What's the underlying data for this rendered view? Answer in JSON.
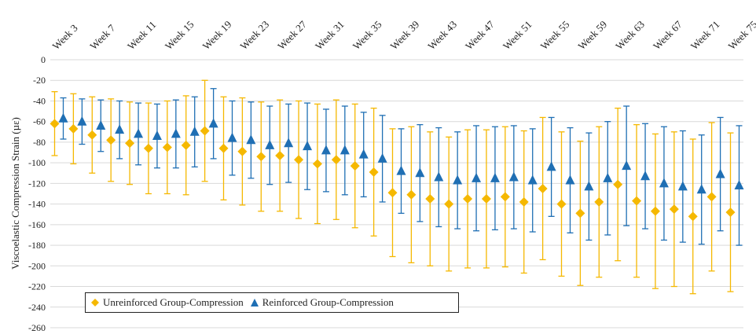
{
  "chart_data": {
    "type": "scatter",
    "title": "",
    "xlabel": "",
    "ylabel": "Viscoelastic Compression Strain (µε)",
    "ylim": [
      -260,
      0
    ],
    "ytick_step": 20,
    "grid": "horizontal",
    "legend_position": "bottom-left",
    "x": [
      "Week 3",
      "Week 5",
      "Week 7",
      "Week 9",
      "Week 11",
      "Week 13",
      "Week 15",
      "Week 17",
      "Week 19",
      "Week 21",
      "Week 23",
      "Week 25",
      "Week 27",
      "Week 29",
      "Week 31",
      "Week 33",
      "Week 35",
      "Week 37",
      "Week 39",
      "Week 41",
      "Week 43",
      "Week 45",
      "Week 47",
      "Week 49",
      "Week 51",
      "Week 53",
      "Week 55",
      "Week 57",
      "Week 59",
      "Week 61",
      "Week 63",
      "Week 65",
      "Week 67",
      "Week 69",
      "Week 71",
      "Week 73",
      "Week 75"
    ],
    "x_tick_labels": [
      "Week 3",
      "Week 7",
      "Week 11",
      "Week 15",
      "Week 19",
      "Week 23",
      "Week 27",
      "Week 31",
      "Week 35",
      "Week 39",
      "Week 43",
      "Week 47",
      "Week 51",
      "Week 55",
      "Week 59",
      "Week 63",
      "Week 67",
      "Week 71",
      "Week 75"
    ],
    "series": [
      {
        "name": "Unreinforced Group-Compression",
        "color": "#f5b800",
        "marker": "diamond",
        "values": [
          -62,
          -67,
          -73,
          -78,
          -81,
          -86,
          -85,
          -83,
          -69,
          -86,
          -89,
          -94,
          -93,
          -97,
          -101,
          -97,
          -103,
          -109,
          -129,
          -131,
          -135,
          -140,
          -135,
          -135,
          -133,
          -138,
          -125,
          -140,
          -149,
          -138,
          -121,
          -137,
          -147,
          -145,
          -152,
          -133,
          -148
        ],
        "error": [
          31,
          34,
          37,
          40,
          40,
          44,
          45,
          48,
          49,
          50,
          52,
          53,
          54,
          57,
          58,
          58,
          60,
          62,
          62,
          66,
          65,
          65,
          67,
          67,
          68,
          69,
          69,
          70,
          70,
          73,
          74,
          74,
          75,
          75,
          75,
          72,
          77
        ]
      },
      {
        "name": "Reinforced Group-Compression",
        "color": "#1f6fb4",
        "marker": "triangle",
        "values": [
          -57,
          -60,
          -64,
          -68,
          -72,
          -74,
          -72,
          -70,
          -62,
          -76,
          -78,
          -83,
          -81,
          -84,
          -88,
          -88,
          -92,
          -96,
          -108,
          -110,
          -114,
          -117,
          -115,
          -115,
          -114,
          -117,
          -104,
          -117,
          -123,
          -115,
          -103,
          -113,
          -120,
          -123,
          -126,
          -111,
          -122
        ],
        "error": [
          20,
          22,
          25,
          28,
          30,
          31,
          33,
          34,
          34,
          36,
          37,
          38,
          38,
          42,
          40,
          43,
          41,
          42,
          41,
          47,
          48,
          47,
          51,
          50,
          50,
          50,
          48,
          51,
          52,
          55,
          58,
          51,
          55,
          54,
          53,
          55,
          58
        ]
      }
    ]
  }
}
